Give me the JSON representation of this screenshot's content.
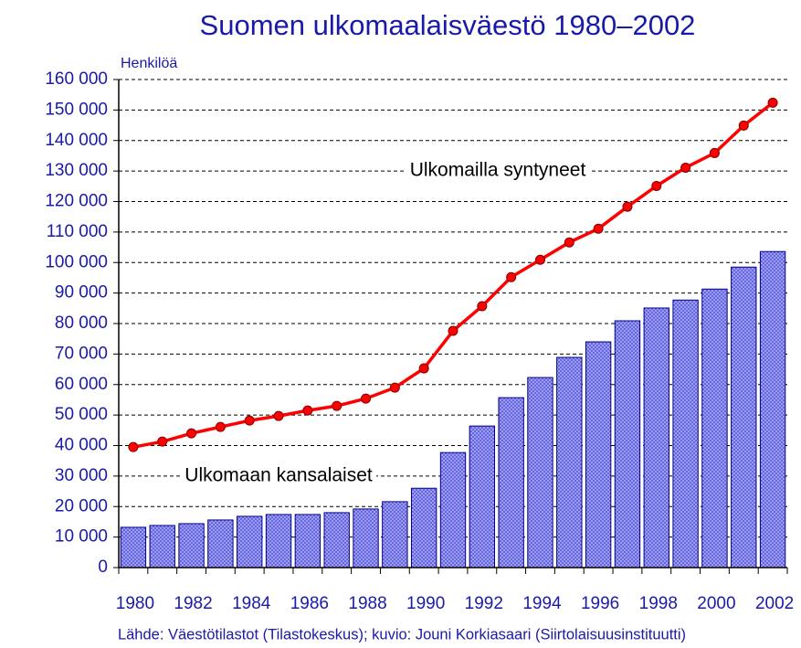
{
  "chart_data": {
    "type": "bar_line",
    "title": "Suomen ulkomaalaisväestö 1980–2002",
    "y_axis_label": "Henkilöä",
    "source": "Lähde: Väestötilastot (Tilastokeskus);  kuvio: Jouni Korkiasaari (Siirtolaisuusinstituutti)",
    "categories": [
      "1980",
      null,
      "1982",
      null,
      "1984",
      null,
      "1986",
      null,
      "1988",
      null,
      "1990",
      null,
      "1992",
      null,
      "1994",
      null,
      "1996",
      null,
      "1998",
      null,
      "2000",
      null,
      "2002"
    ],
    "series": [
      {
        "name": "Ulkomaan kansalaiset",
        "kind": "bar",
        "color": "#9999ff",
        "values": [
          13200,
          13800,
          14400,
          15600,
          16800,
          17400,
          17400,
          18000,
          19200,
          21600,
          26000,
          37700,
          46400,
          55700,
          62300,
          68900,
          74000,
          80900,
          85100,
          87700,
          91300,
          98500,
          103600
        ]
      },
      {
        "name": "Ulkomailla syntyneet",
        "kind": "line",
        "color": "#ff0000",
        "values": [
          39500,
          41300,
          44000,
          46100,
          48200,
          49700,
          51500,
          53000,
          55400,
          59000,
          65300,
          77600,
          85700,
          95200,
          100900,
          106600,
          111100,
          118300,
          125100,
          131100,
          135900,
          144900,
          152400
        ]
      }
    ],
    "ylim": [
      0,
      160000
    ],
    "yticks": [
      0,
      {
        "value": 10000,
        "label": "10 000"
      },
      {
        "value": 20000,
        "label": "20 000"
      },
      {
        "value": 30000,
        "label": "30 000"
      },
      {
        "value": 40000,
        "label": "40 000"
      },
      {
        "value": 50000,
        "label": "50 000"
      },
      {
        "value": 60000,
        "label": "60 000"
      },
      {
        "value": 70000,
        "label": "70 000"
      },
      {
        "value": 80000,
        "label": "80 000"
      },
      {
        "value": 90000,
        "label": "90 000"
      },
      {
        "value": 100000,
        "label": "100 000"
      },
      {
        "value": 110000,
        "label": "110 000"
      },
      {
        "value": 120000,
        "label": "120 000"
      },
      {
        "value": 130000,
        "label": "130 000"
      },
      {
        "value": 140000,
        "label": "140 000"
      },
      {
        "value": 150000,
        "label": "150 000"
      },
      {
        "value": 160000,
        "label": "160 000"
      }
    ],
    "grid": true
  }
}
